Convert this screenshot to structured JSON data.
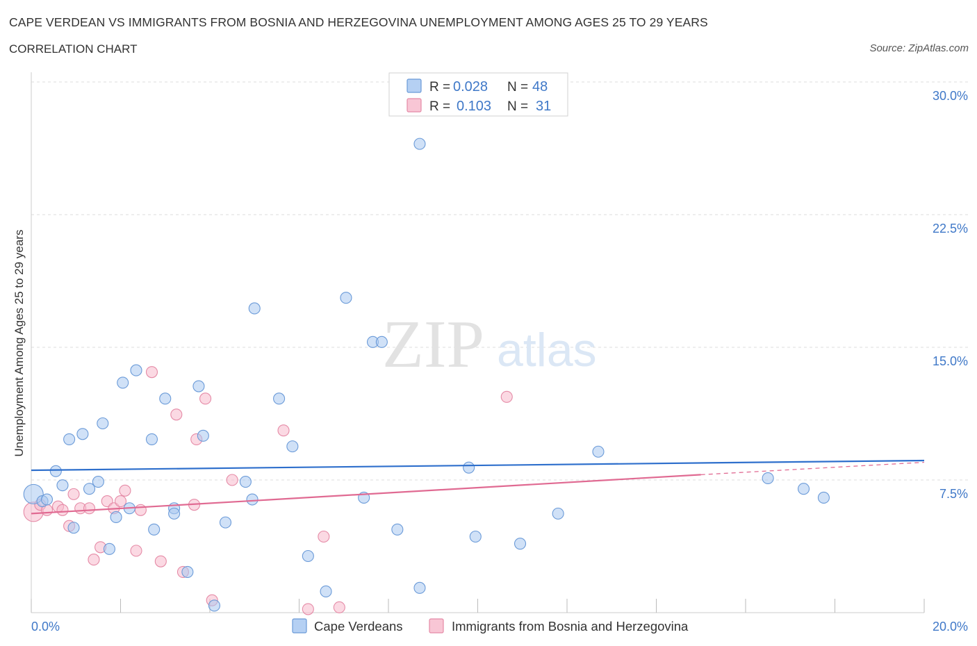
{
  "chart_data": {
    "type": "scatter",
    "title": "CAPE VERDEAN VS IMMIGRANTS FROM BOSNIA AND HERZEGOVINA UNEMPLOYMENT AMONG AGES 25 TO 29 YEARS",
    "subtitle": "CORRELATION CHART",
    "source": "Source: ZipAtlas.com",
    "xlabel": "",
    "ylabel": "Unemployment Among Ages 25 to 29 years",
    "xlim": [
      0,
      20
    ],
    "ylim": [
      0,
      30
    ],
    "x_tick_labels": [
      "0.0%",
      "20.0%"
    ],
    "y_ticks": [
      7.5,
      15.0,
      22.5,
      30.0
    ],
    "y_tick_labels": [
      "7.5%",
      "15.0%",
      "22.5%",
      "30.0%"
    ],
    "grid": true,
    "watermark": {
      "zip": "ZIP",
      "atlas": "atlas"
    },
    "legend_stats": [
      {
        "r_label": "R =",
        "r": "0.028",
        "n_label": "N =",
        "n": "48"
      },
      {
        "r_label": "R =",
        "r": "0.103",
        "n_label": "N =",
        "n": "31"
      }
    ],
    "series": [
      {
        "name": "Cape Verdeans",
        "color": "#a9c8f0",
        "stroke": "#6a9ad8",
        "line_color": "#2e6fcc",
        "trend": {
          "x": [
            0,
            20
          ],
          "y": [
            8.05,
            8.6
          ]
        },
        "points": [
          [
            0.05,
            6.7,
            14
          ],
          [
            0.25,
            6.3,
            8
          ],
          [
            0.35,
            6.4,
            8
          ],
          [
            0.55,
            8.0,
            8
          ],
          [
            0.7,
            7.2,
            8
          ],
          [
            0.85,
            9.8,
            8
          ],
          [
            0.95,
            4.8,
            8
          ],
          [
            1.15,
            10.1,
            8
          ],
          [
            1.3,
            7.0,
            8
          ],
          [
            1.5,
            7.4,
            8
          ],
          [
            1.6,
            10.7,
            8
          ],
          [
            1.75,
            3.6,
            8
          ],
          [
            1.9,
            5.4,
            8
          ],
          [
            2.05,
            13.0,
            8
          ],
          [
            2.2,
            5.9,
            8
          ],
          [
            2.35,
            13.7,
            8
          ],
          [
            2.7,
            9.8,
            8
          ],
          [
            2.75,
            4.7,
            8
          ],
          [
            3.0,
            12.1,
            8
          ],
          [
            3.2,
            5.9,
            8
          ],
          [
            3.2,
            5.6,
            8
          ],
          [
            3.5,
            2.3,
            8
          ],
          [
            3.75,
            12.8,
            8
          ],
          [
            3.85,
            10.0,
            8
          ],
          [
            4.1,
            0.4,
            8
          ],
          [
            4.35,
            5.1,
            8
          ],
          [
            4.8,
            7.4,
            8
          ],
          [
            4.95,
            6.4,
            8
          ],
          [
            5.0,
            17.2,
            8
          ],
          [
            5.55,
            12.1,
            8
          ],
          [
            5.85,
            9.4,
            8
          ],
          [
            6.2,
            3.2,
            8
          ],
          [
            6.6,
            1.2,
            8
          ],
          [
            7.05,
            17.8,
            8
          ],
          [
            7.45,
            6.5,
            8
          ],
          [
            7.65,
            15.3,
            8
          ],
          [
            7.85,
            15.3,
            8
          ],
          [
            8.2,
            4.7,
            8
          ],
          [
            8.7,
            1.4,
            8
          ],
          [
            8.7,
            26.5,
            8
          ],
          [
            9.8,
            8.2,
            8
          ],
          [
            9.95,
            4.3,
            8
          ],
          [
            10.95,
            3.9,
            8
          ],
          [
            11.8,
            5.6,
            8
          ],
          [
            12.7,
            9.1,
            8
          ],
          [
            16.5,
            7.6,
            8
          ],
          [
            17.3,
            7.0,
            8
          ],
          [
            17.75,
            6.5,
            8
          ]
        ]
      },
      {
        "name": "Immigrants from Bosnia and Herzegovina",
        "color": "#f7b9cc",
        "stroke": "#e58aa6",
        "line_color": "#e06a92",
        "trend": {
          "x": [
            0,
            15
          ],
          "y": [
            5.6,
            7.8
          ]
        },
        "trend_dashed": {
          "x": [
            15,
            20
          ],
          "y": [
            7.8,
            8.5
          ]
        },
        "points": [
          [
            0.05,
            5.7,
            14
          ],
          [
            0.2,
            6.1,
            8
          ],
          [
            0.35,
            5.8,
            8
          ],
          [
            0.6,
            6.0,
            8
          ],
          [
            0.7,
            5.8,
            8
          ],
          [
            0.85,
            4.9,
            8
          ],
          [
            0.95,
            6.7,
            8
          ],
          [
            1.1,
            5.9,
            8
          ],
          [
            1.3,
            5.9,
            8
          ],
          [
            1.4,
            3.0,
            8
          ],
          [
            1.55,
            3.7,
            8
          ],
          [
            1.7,
            6.3,
            8
          ],
          [
            1.85,
            5.9,
            8
          ],
          [
            2.0,
            6.3,
            8
          ],
          [
            2.1,
            6.9,
            8
          ],
          [
            2.35,
            3.5,
            8
          ],
          [
            2.45,
            5.8,
            8
          ],
          [
            2.7,
            13.6,
            8
          ],
          [
            2.9,
            2.9,
            8
          ],
          [
            3.25,
            11.2,
            8
          ],
          [
            3.4,
            2.3,
            8
          ],
          [
            3.65,
            6.1,
            8
          ],
          [
            3.7,
            9.8,
            8
          ],
          [
            3.9,
            12.1,
            8
          ],
          [
            4.05,
            0.7,
            8
          ],
          [
            4.5,
            7.5,
            8
          ],
          [
            5.65,
            10.3,
            8
          ],
          [
            6.2,
            0.2,
            8
          ],
          [
            6.55,
            4.3,
            8
          ],
          [
            6.9,
            0.3,
            8
          ],
          [
            10.65,
            12.2,
            8
          ]
        ]
      }
    ]
  }
}
